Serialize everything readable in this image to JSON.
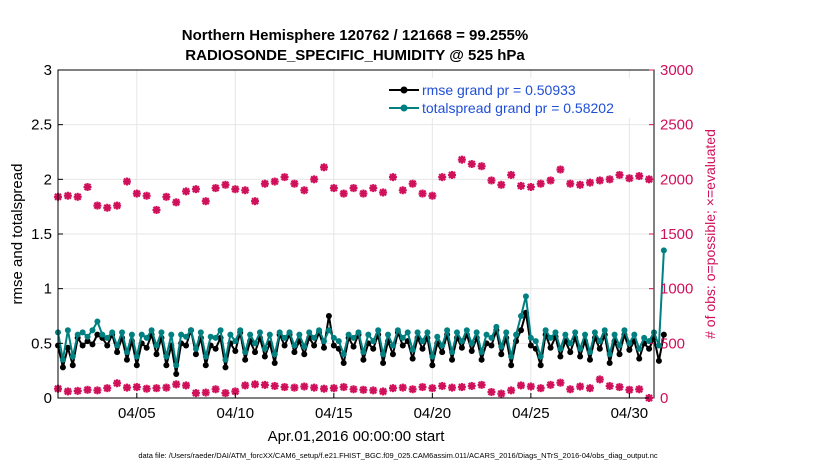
{
  "chart_data": {
    "type": "line",
    "title_line1": "Northern Hemisphere 120762 / 121668 = 99.255%",
    "title_line2": "RADIOSONDE_SPECIFIC_HUMIDITY @ 525 hPa",
    "xlabel": "Apr.01,2016 00:00:00 start",
    "ylabel_left": "rmse and totalspread",
    "ylabel_right": "# of obs: o=possible; ×=evaluated",
    "footer": "data file: /Users/raeder/DAI/ATM_forcXX/CAM6_setup/f.e21.FHIST_BGC.f09_025.CAM6assim.011/ACARS_2016/Diags_NTrS_2016-04/obs_diag_output.nc",
    "xlim": [
      1.0,
      31.25
    ],
    "ylim_left": [
      0,
      3
    ],
    "ylim_right": [
      0,
      3000
    ],
    "x_ticks": [
      5,
      10,
      15,
      20,
      25,
      30
    ],
    "x_tick_labels": [
      "04/05",
      "04/10",
      "04/15",
      "04/20",
      "04/25",
      "04/30"
    ],
    "y_left_ticks": [
      0,
      0.5,
      1,
      1.5,
      2,
      2.5,
      3
    ],
    "y_left_tick_labels": [
      "0",
      "0.5",
      "1",
      "1.5",
      "2",
      "2.5",
      "3"
    ],
    "y_right_ticks": [
      0,
      500,
      1000,
      1500,
      2000,
      2500,
      3000
    ],
    "y_right_tick_labels": [
      "0",
      "500",
      "1000",
      "1500",
      "2000",
      "2500",
      "3000"
    ],
    "colors": {
      "rmse": "#000000",
      "spread": "#008080",
      "obs": "#d0105a",
      "grid": "#e6e6e6"
    },
    "series": [
      {
        "name": "rmse grand pr = 0.50933",
        "axis": "left",
        "x_start": 1.0,
        "x_step": 0.25,
        "values": [
          0.48,
          0.28,
          0.46,
          0.3,
          0.55,
          0.48,
          0.52,
          0.49,
          0.58,
          0.55,
          0.48,
          0.58,
          0.42,
          0.55,
          0.35,
          0.52,
          0.3,
          0.5,
          0.46,
          0.58,
          0.4,
          0.55,
          0.3,
          0.48,
          0.22,
          0.5,
          0.48,
          0.62,
          0.4,
          0.55,
          0.3,
          0.48,
          0.45,
          0.55,
          0.28,
          0.5,
          0.43,
          0.6,
          0.35,
          0.52,
          0.42,
          0.55,
          0.38,
          0.5,
          0.32,
          0.58,
          0.48,
          0.58,
          0.42,
          0.52,
          0.4,
          0.55,
          0.48,
          0.6,
          0.46,
          0.75,
          0.48,
          0.45,
          0.32,
          0.55,
          0.47,
          0.58,
          0.35,
          0.5,
          0.45,
          0.58,
          0.32,
          0.52,
          0.4,
          0.6,
          0.48,
          0.52,
          0.36,
          0.55,
          0.45,
          0.55,
          0.3,
          0.5,
          0.42,
          0.58,
          0.35,
          0.55,
          0.46,
          0.58,
          0.43,
          0.55,
          0.35,
          0.5,
          0.48,
          0.62,
          0.4,
          0.55,
          0.3,
          0.52,
          0.62,
          0.78,
          0.48,
          0.45,
          0.3,
          0.58,
          0.46,
          0.56,
          0.38,
          0.52,
          0.42,
          0.55,
          0.38,
          0.52,
          0.35,
          0.55,
          0.45,
          0.58,
          0.32,
          0.52,
          0.4,
          0.58,
          0.44,
          0.52,
          0.36,
          0.5,
          0.45,
          0.55,
          0.34,
          0.58
        ]
      },
      {
        "name": "totalspread grand pr = 0.58202",
        "axis": "left",
        "x_start": 1.0,
        "x_step": 0.25,
        "values": [
          0.6,
          0.35,
          0.62,
          0.38,
          0.58,
          0.6,
          0.56,
          0.62,
          0.7,
          0.58,
          0.55,
          0.6,
          0.48,
          0.6,
          0.42,
          0.58,
          0.38,
          0.58,
          0.55,
          0.62,
          0.48,
          0.6,
          0.38,
          0.58,
          0.3,
          0.58,
          0.56,
          0.62,
          0.45,
          0.6,
          0.38,
          0.56,
          0.55,
          0.62,
          0.35,
          0.58,
          0.52,
          0.62,
          0.42,
          0.58,
          0.5,
          0.6,
          0.45,
          0.58,
          0.4,
          0.6,
          0.55,
          0.6,
          0.48,
          0.58,
          0.47,
          0.6,
          0.55,
          0.62,
          0.52,
          0.62,
          0.55,
          0.52,
          0.4,
          0.58,
          0.55,
          0.6,
          0.42,
          0.58,
          0.52,
          0.62,
          0.4,
          0.58,
          0.48,
          0.62,
          0.55,
          0.6,
          0.44,
          0.6,
          0.52,
          0.6,
          0.38,
          0.56,
          0.48,
          0.62,
          0.42,
          0.6,
          0.52,
          0.62,
          0.5,
          0.6,
          0.42,
          0.58,
          0.55,
          0.65,
          0.47,
          0.6,
          0.38,
          0.58,
          0.75,
          0.93,
          0.55,
          0.52,
          0.38,
          0.62,
          0.55,
          0.6,
          0.45,
          0.58,
          0.5,
          0.6,
          0.45,
          0.58,
          0.42,
          0.6,
          0.52,
          0.62,
          0.4,
          0.58,
          0.48,
          0.62,
          0.5,
          0.58,
          0.45,
          0.55,
          0.52,
          0.6,
          0.48,
          1.35
        ]
      },
      {
        "name": "evaluated obs",
        "axis": "right",
        "x_start": 1.0,
        "x_step": 0.5,
        "values": [
          1840,
          1850,
          1840,
          1930,
          1760,
          1740,
          1760,
          1980,
          1870,
          1850,
          1720,
          1840,
          1790,
          1890,
          1910,
          1800,
          1920,
          1950,
          1910,
          1900,
          1800,
          1960,
          1980,
          2020,
          1960,
          1900,
          2000,
          2110,
          1920,
          1870,
          1920,
          1870,
          1920,
          1880,
          2020,
          1900,
          1960,
          1870,
          1850,
          2020,
          2040,
          2180,
          2140,
          2120,
          1990,
          1950,
          2040,
          1940,
          1930,
          1960,
          1990,
          2090,
          1960,
          1950,
          1970,
          1990,
          2000,
          2040,
          2010,
          2030,
          2000
        ]
      },
      {
        "name": "possible obs",
        "axis": "right",
        "x_start": 1.0,
        "x_step": 0.5,
        "values": [
          85,
          60,
          65,
          75,
          70,
          90,
          135,
          95,
          100,
          85,
          90,
          95,
          125,
          115,
          45,
          50,
          80,
          45,
          60,
          115,
          125,
          120,
          110,
          100,
          95,
          105,
          95,
          85,
          90,
          100,
          80,
          75,
          70,
          60,
          90,
          95,
          80,
          100,
          90,
          110,
          95,
          100,
          110,
          120,
          55,
          40,
          70,
          115,
          105,
          90,
          120,
          140,
          80,
          105,
          90,
          170,
          110,
          100,
          75,
          80,
          0
        ]
      }
    ],
    "legend": [
      "rmse grand pr = 0.50933",
      "totalspread grand pr = 0.58202"
    ],
    "legend_position": "top-right"
  }
}
